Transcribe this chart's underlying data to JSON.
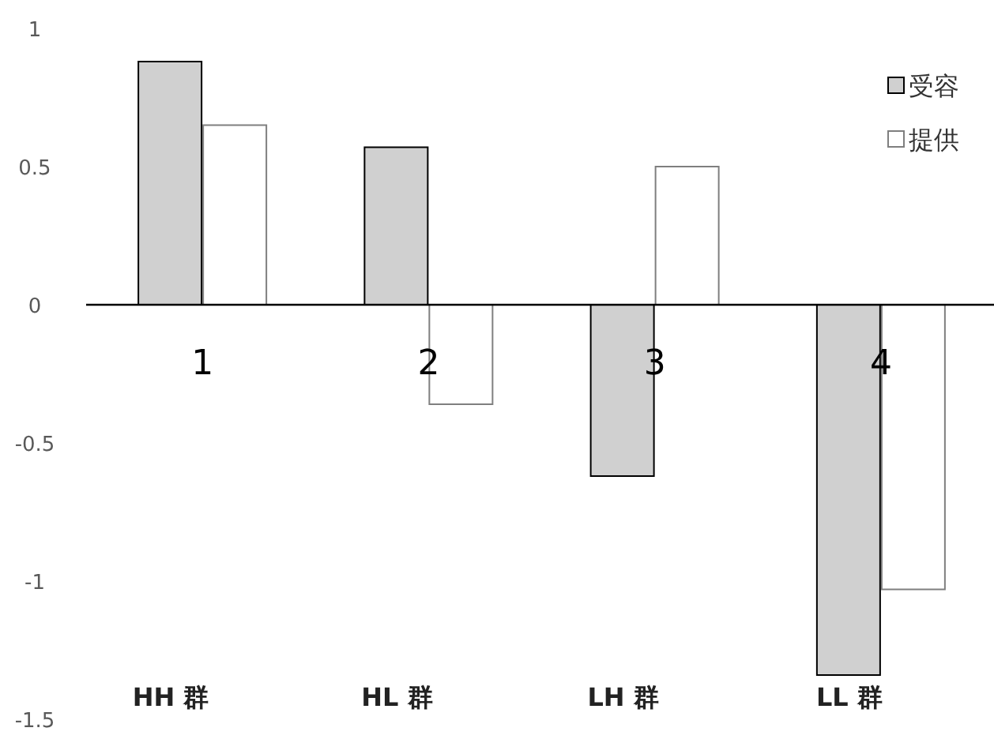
{
  "chart_data": {
    "type": "bar",
    "categories": [
      "1",
      "2",
      "3",
      "4"
    ],
    "series": [
      {
        "name": "受容",
        "color": "#d0d0d0",
        "values": [
          0.88,
          0.57,
          -0.62,
          -1.34
        ]
      },
      {
        "name": "提供",
        "color": "#ffffff",
        "values": [
          0.65,
          -0.36,
          0.5,
          -1.03
        ]
      }
    ],
    "ylim": [
      -1.5,
      1
    ],
    "yticks": [
      -1.5,
      -1,
      -0.5,
      0,
      0.5,
      1
    ],
    "legend": "top right",
    "annotations": [
      "HH 群",
      "HL 群",
      "LH 群",
      "LL 群"
    ]
  }
}
